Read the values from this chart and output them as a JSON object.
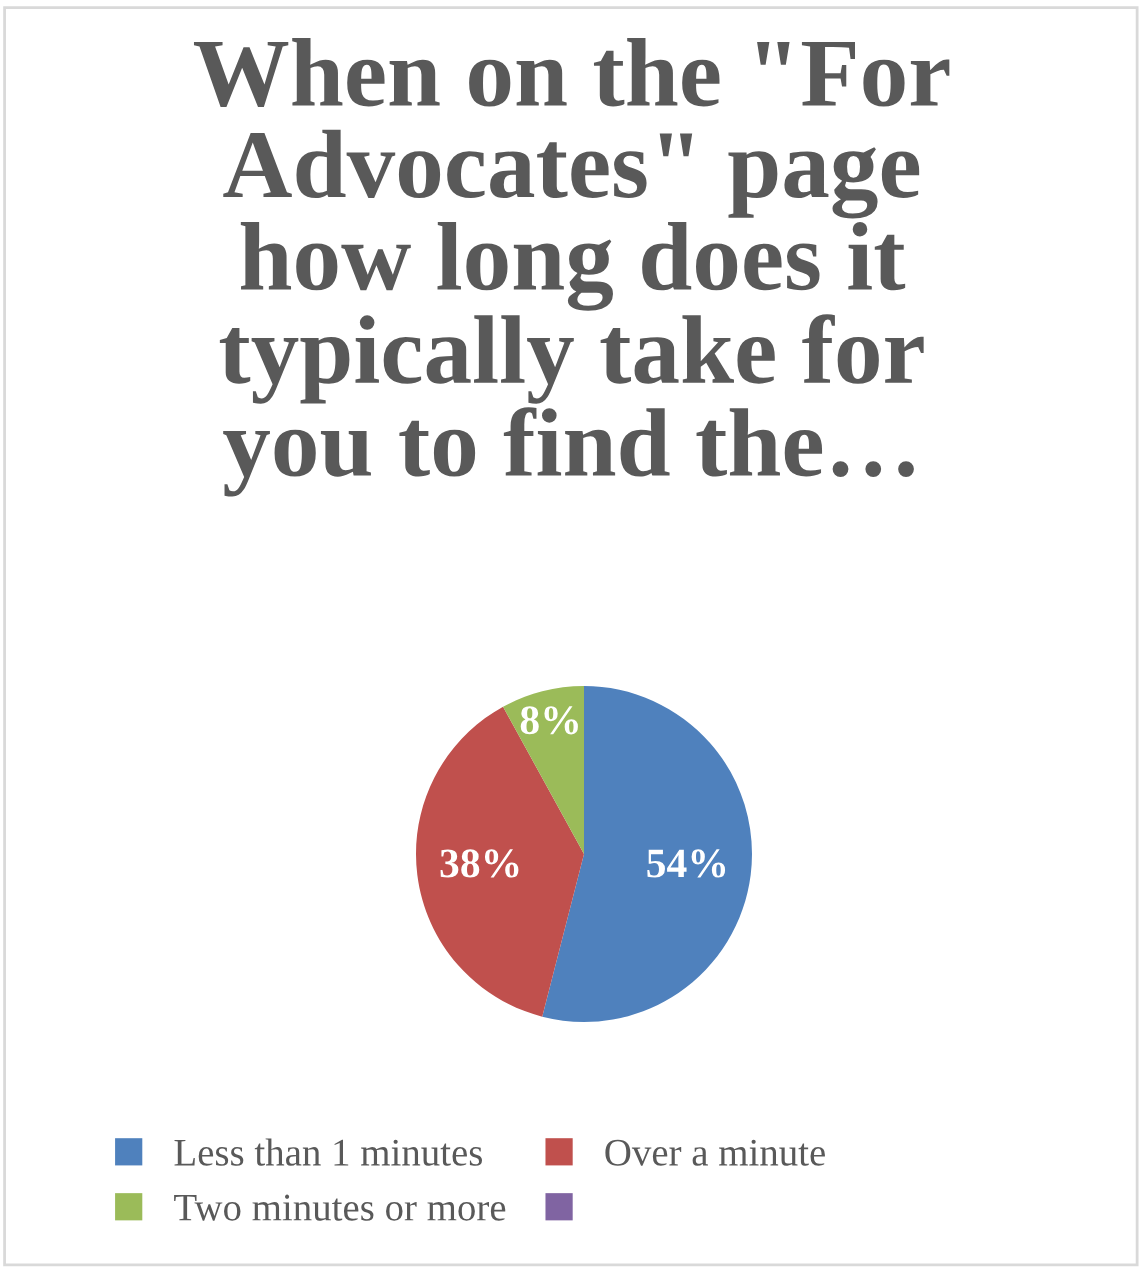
{
  "chart_data": {
    "type": "pie",
    "title": "When on the \"For Advocates\" page how long does it typically take for you to find the…",
    "categories": [
      "Less than 1 minutes",
      "Over a minute",
      "Two minutes or more",
      null
    ],
    "values": [
      54,
      38,
      8,
      0
    ],
    "colors": [
      "#4f81bd",
      "#c0504d",
      "#9bbb59",
      "#8064a2"
    ],
    "value_labels": [
      "54%",
      "38%",
      "8%",
      null
    ],
    "legend": "bottom"
  }
}
